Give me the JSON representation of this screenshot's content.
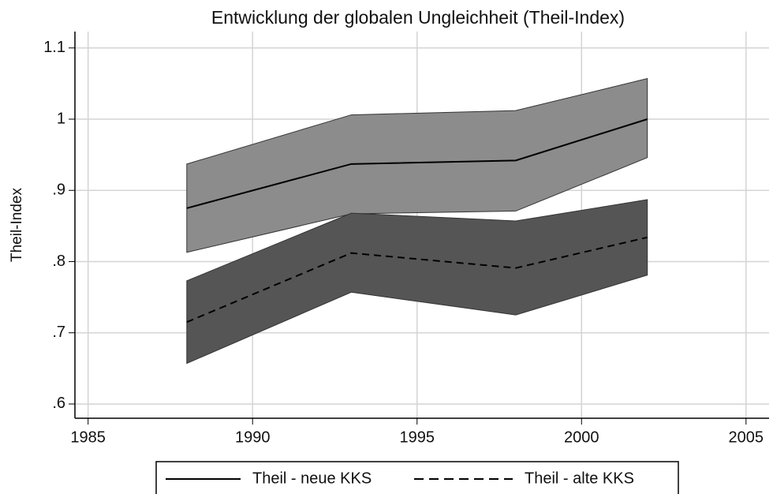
{
  "chart_data": {
    "type": "line",
    "title": "Entwicklung der globalen Ungleichheit (Theil-Index)",
    "ylabel": "Theil-Index",
    "x": [
      1988,
      1993,
      1998,
      2002
    ],
    "series": [
      {
        "name": "Theil - neue KKS",
        "color": "#000000",
        "band_color": "#8c8c8c",
        "style": "solid",
        "values": [
          0.875,
          0.937,
          0.942,
          1.0
        ],
        "upper": [
          0.937,
          1.006,
          1.012,
          1.057
        ],
        "lower": [
          0.813,
          0.867,
          0.871,
          0.946
        ]
      },
      {
        "name": "Theil - alte KKS",
        "color": "#000000",
        "band_color": "#555555",
        "style": "dashed",
        "values": [
          0.715,
          0.812,
          0.791,
          0.834
        ],
        "upper": [
          0.773,
          0.868,
          0.857,
          0.887
        ],
        "lower": [
          0.657,
          0.757,
          0.725,
          0.781
        ]
      }
    ],
    "xlim": [
      1984.6,
      2005.7
    ],
    "xticks": [
      1985,
      1990,
      1995,
      2000,
      2005
    ],
    "ylim": [
      0.58,
      1.123
    ],
    "yticks": [
      1.1,
      1,
      {
        "value": 0.9,
        "label": ".9"
      },
      {
        "value": 0.8,
        "label": ".8"
      },
      {
        "value": 0.7,
        "label": ".7"
      },
      {
        "value": 0.6,
        "label": ".6"
      }
    ],
    "grid": true,
    "legend": "bottom"
  }
}
